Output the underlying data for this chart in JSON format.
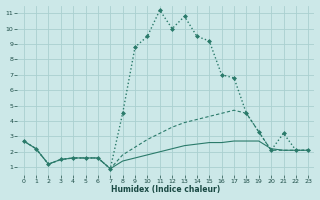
{
  "xlabel": "Humidex (Indice chaleur)",
  "background_color": "#cce8e8",
  "grid_color": "#aad0d0",
  "line_color": "#2a7a6a",
  "xlim": [
    -0.5,
    23.5
  ],
  "ylim": [
    0.5,
    11.5
  ],
  "xticks": [
    0,
    1,
    2,
    3,
    4,
    5,
    6,
    7,
    8,
    9,
    10,
    11,
    12,
    13,
    14,
    15,
    16,
    17,
    18,
    19,
    20,
    21,
    22,
    23
  ],
  "yticks": [
    1,
    2,
    3,
    4,
    5,
    6,
    7,
    8,
    9,
    10,
    11
  ],
  "series_main": {
    "x": [
      0,
      1,
      2,
      3,
      4,
      5,
      6,
      7,
      8,
      9,
      10,
      11,
      12,
      13,
      14,
      15,
      16,
      17,
      18,
      19,
      20,
      21,
      22,
      23
    ],
    "y": [
      2.7,
      2.2,
      1.2,
      1.5,
      1.6,
      1.6,
      1.6,
      0.9,
      4.5,
      8.8,
      9.5,
      11.2,
      10.0,
      10.8,
      9.5,
      9.2,
      7.0,
      6.8,
      4.5,
      3.3,
      2.1,
      3.2,
      2.1,
      2.1
    ]
  },
  "series_flat1": {
    "x": [
      0,
      1,
      2,
      3,
      4,
      5,
      6,
      7,
      8,
      9,
      10,
      11,
      12,
      13,
      14,
      15,
      16,
      17,
      18,
      19,
      20,
      21,
      22,
      23
    ],
    "y": [
      2.7,
      2.2,
      1.2,
      1.5,
      1.6,
      1.6,
      1.6,
      0.9,
      1.4,
      1.6,
      1.8,
      2.0,
      2.2,
      2.4,
      2.5,
      2.6,
      2.6,
      2.7,
      2.7,
      2.7,
      2.2,
      2.1,
      2.1,
      2.1
    ]
  },
  "series_flat2": {
    "x": [
      0,
      1,
      2,
      3,
      4,
      5,
      6,
      7,
      8,
      9,
      10,
      11,
      12,
      13,
      14,
      15,
      16,
      17,
      18,
      19,
      20,
      21,
      22,
      23
    ],
    "y": [
      2.7,
      2.2,
      1.2,
      1.5,
      1.6,
      1.6,
      1.6,
      0.9,
      1.8,
      2.3,
      2.8,
      3.2,
      3.6,
      3.9,
      4.1,
      4.3,
      4.5,
      4.7,
      4.5,
      3.3,
      2.1,
      2.1,
      2.1,
      2.1
    ]
  }
}
